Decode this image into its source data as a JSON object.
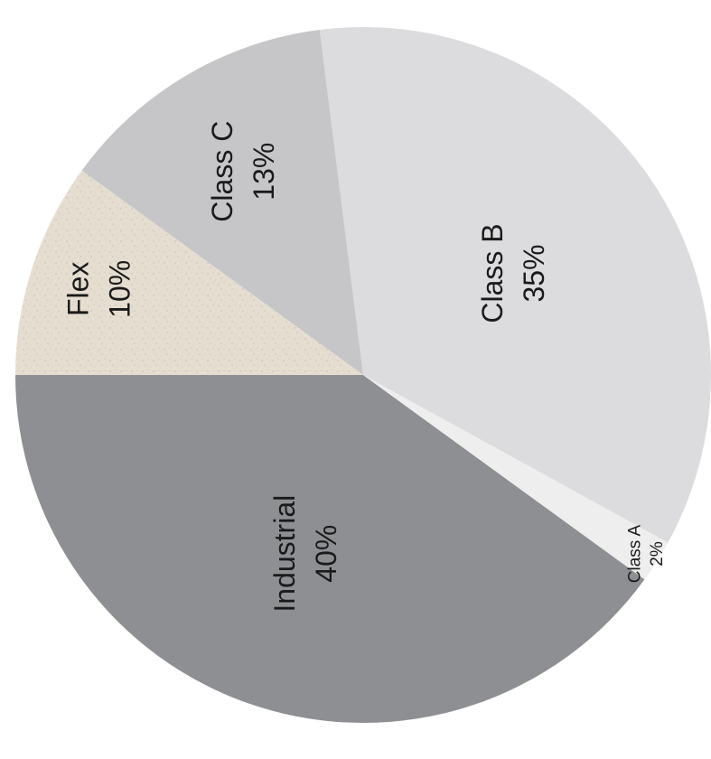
{
  "chart_data": {
    "type": "pie",
    "title": "",
    "slices": [
      {
        "name": "Industrial",
        "label": "Industrial",
        "value_label": "40%",
        "value": 40,
        "color": "#8e8f93"
      },
      {
        "name": "Class A",
        "label": "Class A",
        "value_label": "2%",
        "value": 2,
        "color": "#eeeeee"
      },
      {
        "name": "Class B",
        "label": "Class B",
        "value_label": "35%",
        "value": 35,
        "color": "#dcdcde"
      },
      {
        "name": "Class C",
        "label": "Class C",
        "value_label": "13%",
        "value": 13,
        "color": "#c6c6c8"
      },
      {
        "name": "Flex",
        "label": "Flex",
        "value_label": "10%",
        "value": 10,
        "color": "#e5ddd0"
      }
    ]
  }
}
